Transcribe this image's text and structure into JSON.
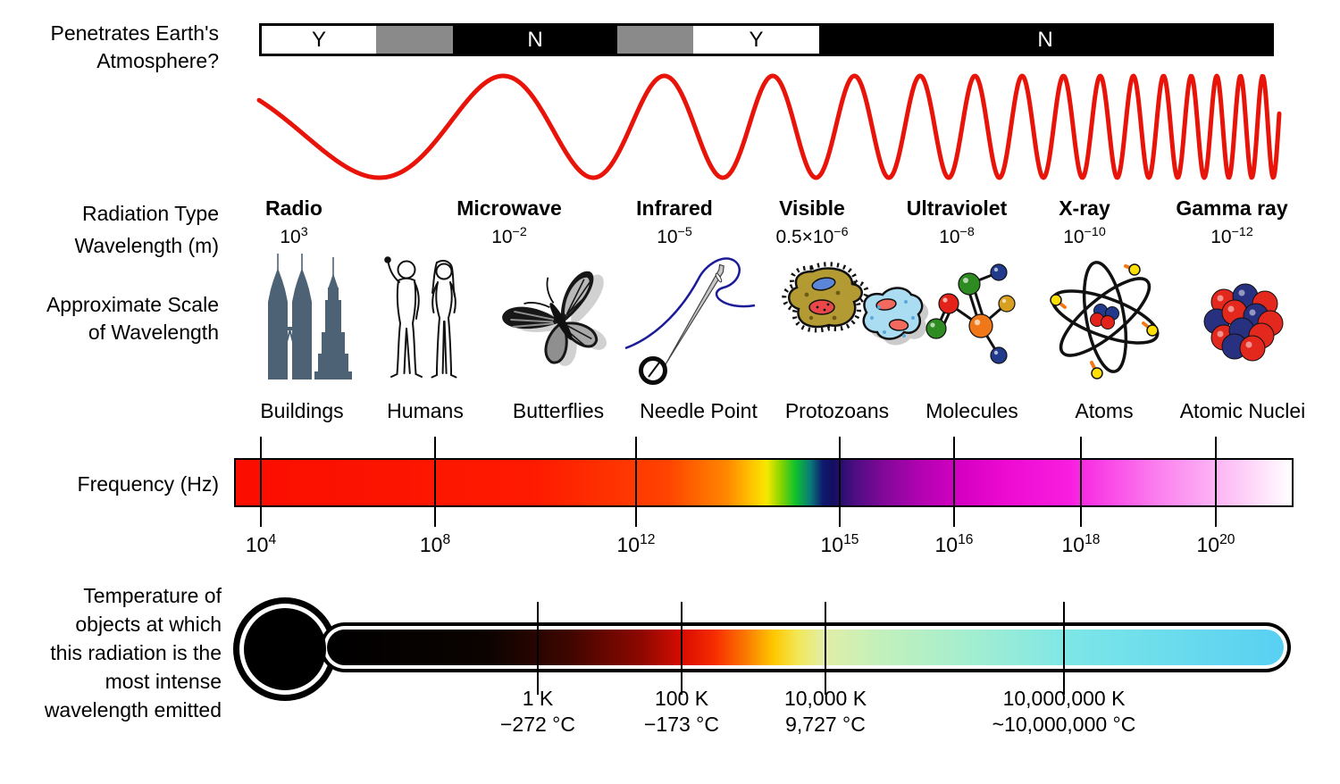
{
  "atmosphere": {
    "label_line1": "Penetrates Earth's",
    "label_line2": "Atmosphere?",
    "segments": [
      {
        "label": "Y",
        "bg": "#ffffff"
      },
      {
        "label": "",
        "bg": "#8a8a8a"
      },
      {
        "label": "N",
        "bg": "#000000"
      },
      {
        "label": "",
        "bg": "#8a8a8a"
      },
      {
        "label": "Y",
        "bg": "#ffffff"
      },
      {
        "label": "N",
        "bg": "#000000"
      }
    ]
  },
  "wave": {
    "color": "#e81309"
  },
  "labels": {
    "radiation_type": "Radiation Type",
    "wavelength": "Wavelength (m)",
    "approx_scale_1": "Approximate Scale",
    "approx_scale_2": "of Wavelength",
    "frequency": "Frequency (Hz)",
    "temperature_lines": [
      "Temperature of",
      "objects at which",
      "this radiation is the",
      "most intense",
      "wavelength emitted"
    ]
  },
  "bands": [
    {
      "name": "Radio",
      "wl_base": "10",
      "wl_exp": "3"
    },
    {
      "name": "Microwave",
      "wl_base": "10",
      "wl_exp": "−2"
    },
    {
      "name": "Infrared",
      "wl_base": "10",
      "wl_exp": "−5"
    },
    {
      "name": "Visible",
      "wl_base": "0.5×10",
      "wl_exp": "−6"
    },
    {
      "name": "Ultraviolet",
      "wl_base": "10",
      "wl_exp": "−8"
    },
    {
      "name": "X-ray",
      "wl_base": "10",
      "wl_exp": "−10"
    },
    {
      "name": "Gamma ray",
      "wl_base": "10",
      "wl_exp": "−12"
    }
  ],
  "scale_objects": [
    {
      "name": "Buildings",
      "icon": "buildings-icon"
    },
    {
      "name": "Humans",
      "icon": "humans-icon"
    },
    {
      "name": "Butterflies",
      "icon": "butterfly-icon"
    },
    {
      "name": "Needle Point",
      "icon": "needle-icon"
    },
    {
      "name": "Protozoans",
      "icon": "protozoans-icon"
    },
    {
      "name": "Molecules",
      "icon": "molecule-icon"
    },
    {
      "name": "Atoms",
      "icon": "atom-icon"
    },
    {
      "name": "Atomic Nuclei",
      "icon": "atomic-nuclei-icon"
    }
  ],
  "frequency_ticks": [
    {
      "base": "10",
      "exp": "4"
    },
    {
      "base": "10",
      "exp": "8"
    },
    {
      "base": "10",
      "exp": "12"
    },
    {
      "base": "10",
      "exp": "15"
    },
    {
      "base": "10",
      "exp": "16"
    },
    {
      "base": "10",
      "exp": "18"
    },
    {
      "base": "10",
      "exp": "20"
    }
  ],
  "temperature_ticks": [
    {
      "kelvin": "1 K",
      "celsius": "−272 °C"
    },
    {
      "kelvin": "100 K",
      "celsius": "−173 °C"
    },
    {
      "kelvin": "10,000 K",
      "celsius": "9,727 °C"
    },
    {
      "kelvin": "10,000,000 K",
      "celsius": "~10,000,000 °C"
    }
  ],
  "colors": {
    "wave": "#e81309",
    "buildings": "#4e6275",
    "freq_bar_start": "#fb0d00",
    "freq_bar_visible_green": "#0ec22c",
    "freq_bar_magenta": "#ee0ad2",
    "freq_bar_end": "#ffffff",
    "thermo_cold": "#000000",
    "thermo_red": "#da0d00",
    "thermo_yellow": "#f2e756",
    "thermo_hot": "#58d0f2"
  }
}
